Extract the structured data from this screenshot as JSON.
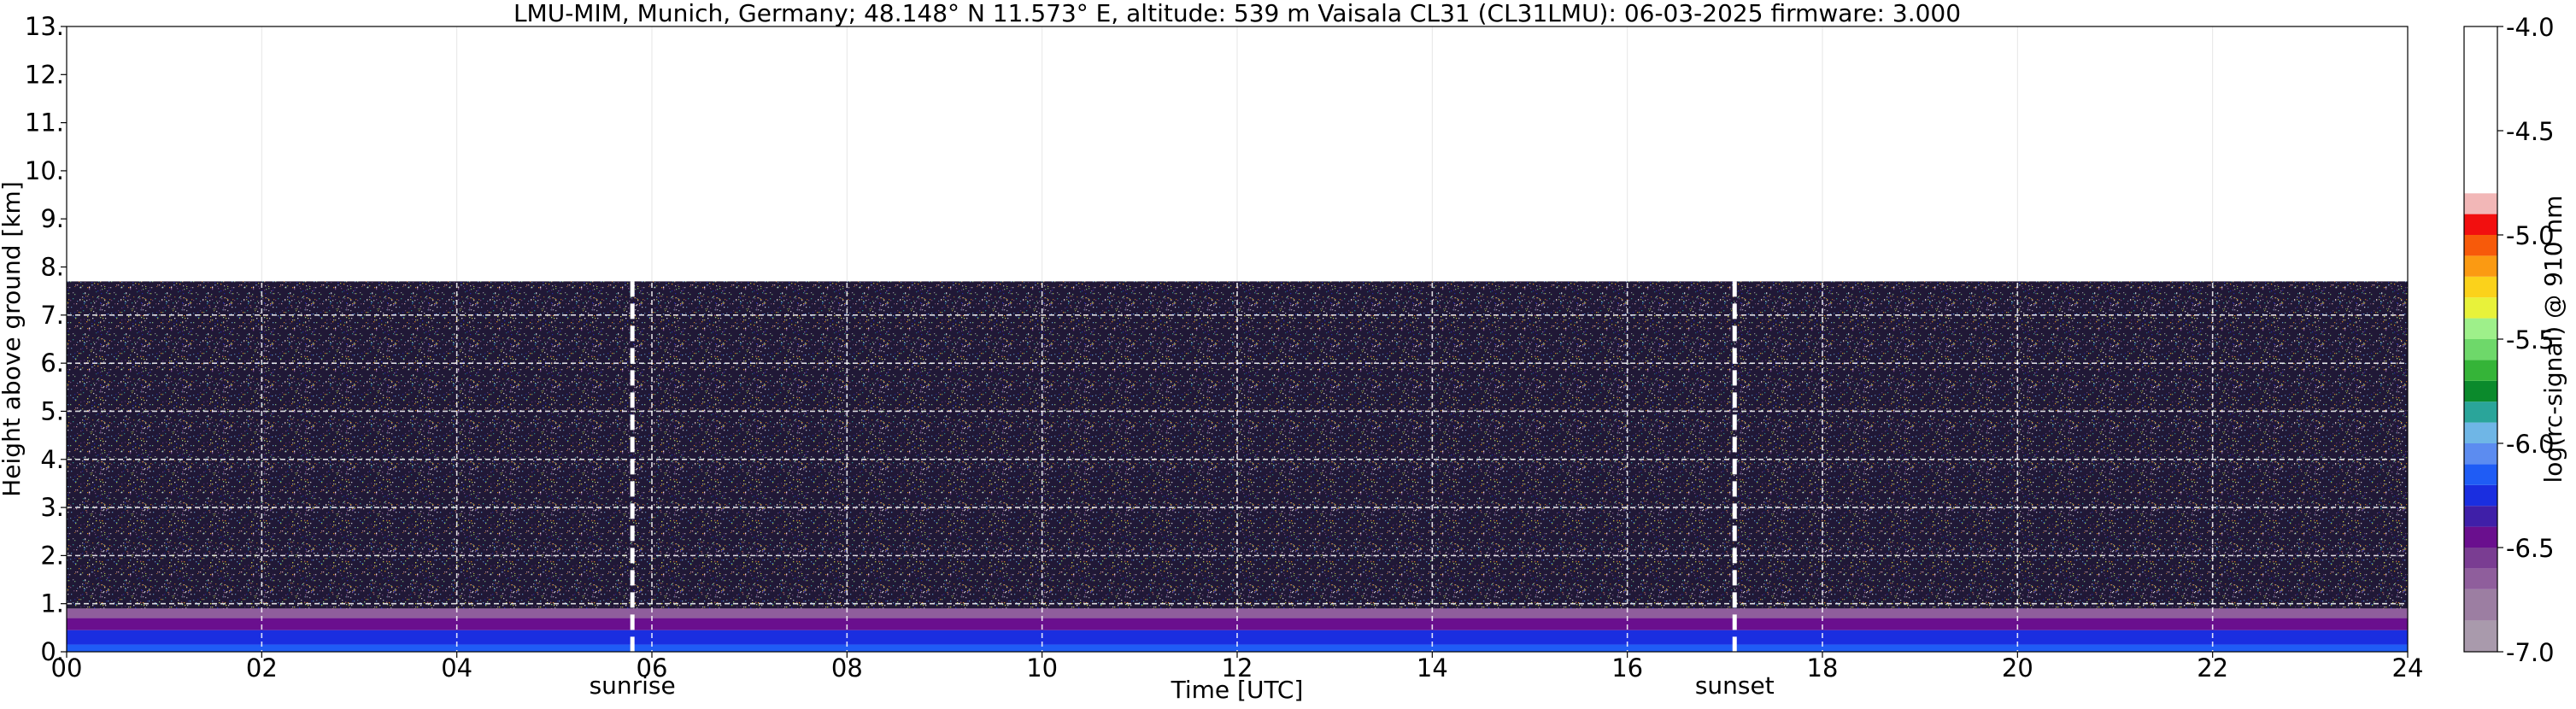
{
  "chart_data": {
    "type": "heatmap",
    "title": "LMU-MIM, Munich, Germany; 48.148° N 11.573° E, altitude: 539 m    Vaisala CL31 (CL31LMU): 06-03-2025    firmware: 3.000",
    "xlabel": "Time [UTC]",
    "ylabel": "Height above ground [km]",
    "xlim": [
      0,
      24
    ],
    "ylim": [
      0,
      13
    ],
    "x_ticks": [
      0,
      2,
      4,
      6,
      8,
      10,
      12,
      14,
      16,
      18,
      20,
      22,
      24
    ],
    "x_tick_labels": [
      "00",
      "02",
      "04",
      "06",
      "08",
      "10",
      "12",
      "14",
      "16",
      "18",
      "20",
      "22",
      "24"
    ],
    "y_ticks": [
      0,
      1,
      2,
      3,
      4,
      5,
      6,
      7,
      8,
      9,
      10,
      11,
      12,
      13
    ],
    "y_tick_labels": [
      "0.",
      "1.",
      "2.",
      "3.",
      "4.",
      "5.",
      "6.",
      "7.",
      "8.",
      "9.",
      "10.",
      "11.",
      "12.",
      "13."
    ],
    "grid": true,
    "max_signal_height_km": 7.7,
    "annotations": [
      {
        "label": "sunrise",
        "x": 5.8
      },
      {
        "label": "sunset",
        "x": 17.1
      }
    ],
    "colorbar": {
      "label": "log(rc-signal) @ 910 nm",
      "range": [
        -7.0,
        -4.0
      ],
      "ticks": [
        -7.0,
        -6.5,
        -6.0,
        -5.5,
        -5.0,
        -4.5,
        -4.0
      ],
      "tick_labels": [
        "-7.0",
        "-6.5",
        "-6.0",
        "-5.5",
        "-5.0",
        "-4.5",
        "-4.0"
      ],
      "colors": [
        {
          "from": -7.0,
          "to": -6.85,
          "color": "#a99aac"
        },
        {
          "from": -6.85,
          "to": -6.7,
          "color": "#9c7ea2"
        },
        {
          "from": -6.7,
          "to": -6.6,
          "color": "#8f5e9c"
        },
        {
          "from": -6.6,
          "to": -6.5,
          "color": "#7a3d92"
        },
        {
          "from": -6.5,
          "to": -6.4,
          "color": "#6a0f8e"
        },
        {
          "from": -6.4,
          "to": -6.3,
          "color": "#3f1fa8"
        },
        {
          "from": -6.3,
          "to": -6.2,
          "color": "#1a2ee0"
        },
        {
          "from": -6.2,
          "to": -6.1,
          "color": "#1f5cf5"
        },
        {
          "from": -6.1,
          "to": -6.0,
          "color": "#5c8cf0"
        },
        {
          "from": -6.0,
          "to": -5.9,
          "color": "#6fb6e6"
        },
        {
          "from": -5.9,
          "to": -5.8,
          "color": "#2aa59a"
        },
        {
          "from": -5.8,
          "to": -5.7,
          "color": "#0b8a2c"
        },
        {
          "from": -5.7,
          "to": -5.6,
          "color": "#35b438"
        },
        {
          "from": -5.6,
          "to": -5.5,
          "color": "#6ed86a"
        },
        {
          "from": -5.5,
          "to": -5.4,
          "color": "#9ef08a"
        },
        {
          "from": -5.4,
          "to": -5.3,
          "color": "#e8f23a"
        },
        {
          "from": -5.3,
          "to": -5.2,
          "color": "#fbd21b"
        },
        {
          "from": -5.2,
          "to": -5.1,
          "color": "#fb9a12"
        },
        {
          "from": -5.1,
          "to": -5.0,
          "color": "#f75a0a"
        },
        {
          "from": -5.0,
          "to": -4.9,
          "color": "#f20f0f"
        },
        {
          "from": -4.9,
          "to": -4.8,
          "color": "#f2b7b7"
        },
        {
          "from": -4.8,
          "to": -4.0,
          "color": "#ffffff"
        }
      ]
    },
    "layers": [
      {
        "from_km": 0.0,
        "to_km": 0.15,
        "color": "#1f5cf5"
      },
      {
        "from_km": 0.15,
        "to_km": 0.45,
        "color": "#1a2ee0"
      },
      {
        "from_km": 0.45,
        "to_km": 0.7,
        "color": "#6a0f8e"
      },
      {
        "from_km": 0.7,
        "to_km": 0.9,
        "color": "#8f5e9c"
      },
      {
        "from_km": 0.9,
        "to_km": 7.7,
        "color": "#1b1430"
      }
    ]
  }
}
